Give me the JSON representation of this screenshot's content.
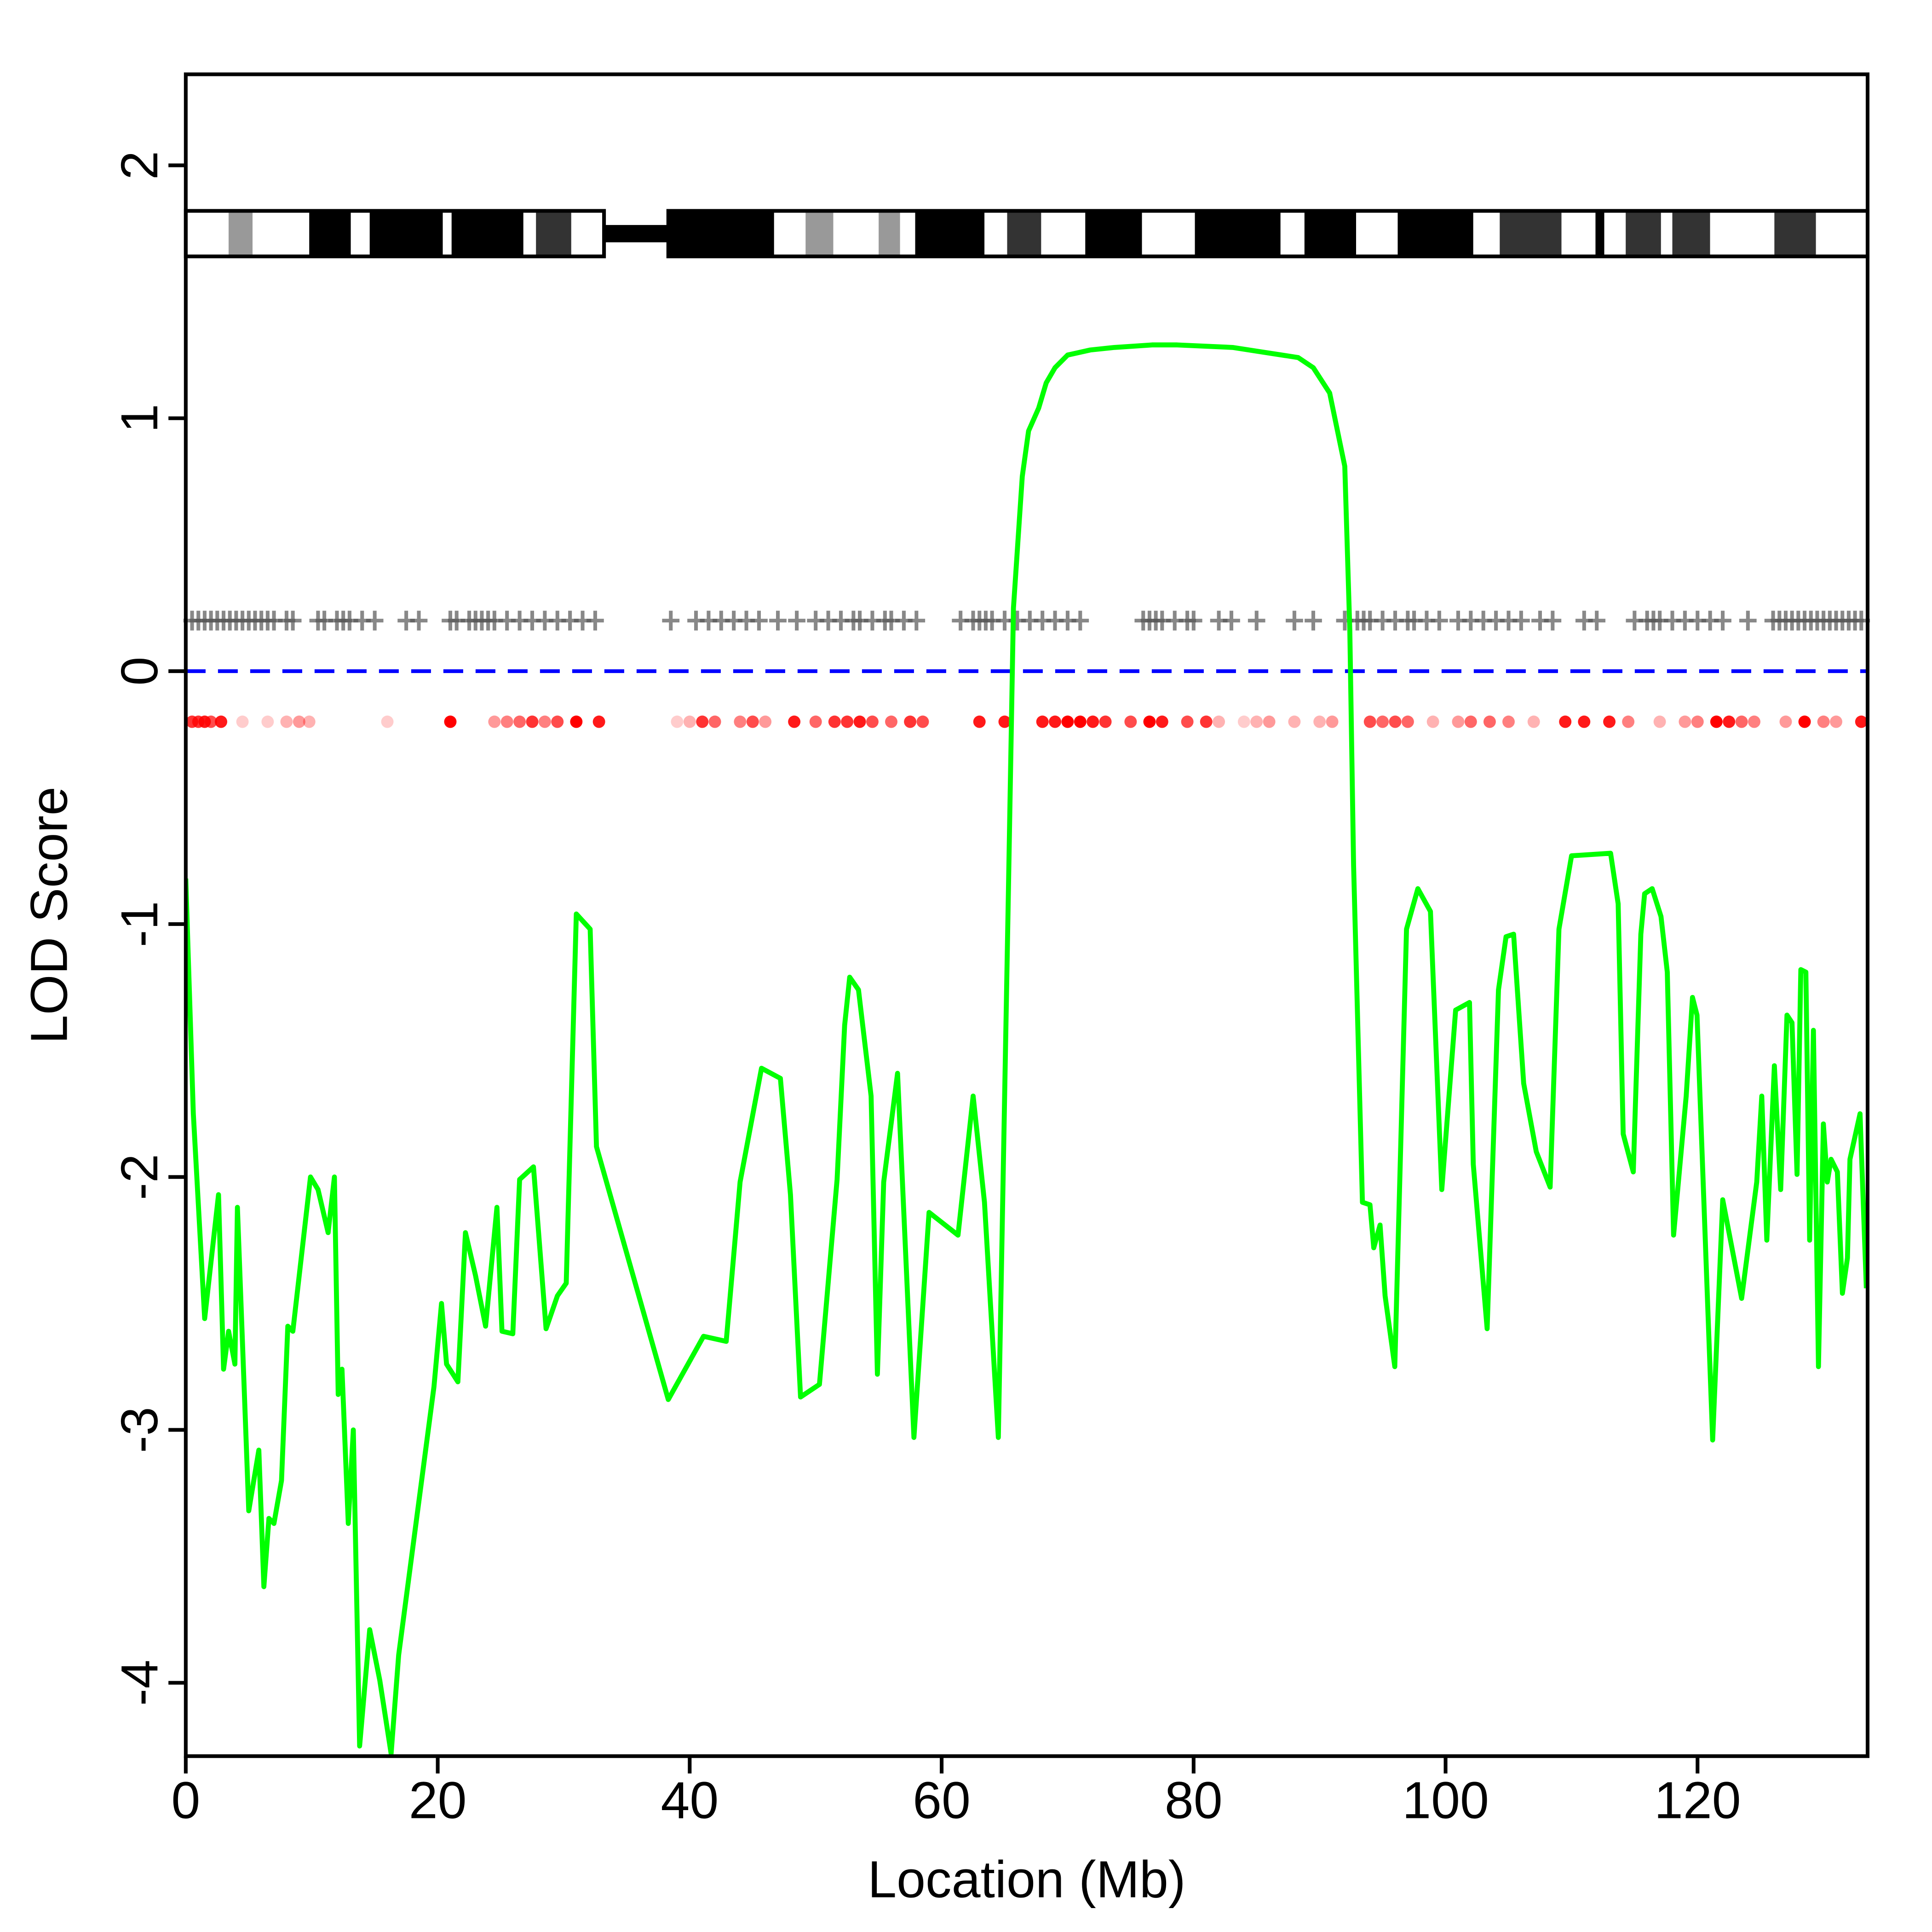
{
  "chart_data": {
    "type": "line",
    "xlabel": "Location (Mb)",
    "ylabel": "LOD Score",
    "xlim": [
      0,
      133.5
    ],
    "ylim": [
      -4.29,
      2.36
    ],
    "xticks": [
      0,
      20,
      40,
      60,
      80,
      100,
      120
    ],
    "yticks": [
      -4,
      -3,
      -2,
      -1,
      0,
      1,
      2
    ],
    "hline": {
      "y": 0,
      "color": "#0000ff"
    },
    "series": [
      {
        "color": "#00ff00",
        "x": [
          0,
          0.6,
          1.5,
          2.6,
          3.0,
          3.4,
          3.9,
          4.1,
          5.0,
          5.8,
          6.2,
          6.6,
          7.0,
          7.6,
          8.1,
          8.5,
          9.9,
          10.5,
          11.3,
          11.8,
          12.1,
          12.4,
          12.9,
          13.3,
          13.8,
          14.6,
          15.4,
          16.3,
          16.9,
          19.7,
          20.3,
          20.7,
          21.6,
          22.2,
          23.0,
          23.8,
          24.7,
          25.1,
          25.96,
          26.5,
          27.6,
          28.6,
          29.5,
          30.2,
          31.0,
          32.1,
          32.6,
          38.3,
          41.1,
          42.9,
          44.0,
          45.7,
          47.2,
          48.0,
          48.8,
          50.3,
          51.7,
          52.3,
          52.7,
          53.4,
          54.4,
          54.9,
          55.4,
          56.5,
          57.8,
          59.0,
          61.3,
          62.5,
          63.4,
          64.5,
          65.3,
          65.7,
          66.4,
          66.9,
          67.7,
          68.3,
          69.0,
          70.0,
          71.8,
          73.7,
          76.7,
          78.7,
          83.1,
          88.3,
          89.5,
          90.8,
          92.0,
          92.4,
          92.7,
          93.4,
          94.0,
          94.3,
          94.8,
          95.2,
          95.97,
          96.9,
          97.8,
          98.8,
          99.7,
          100.8,
          101.9,
          102.2,
          103.3,
          104.2,
          104.8,
          105.4,
          106.2,
          107.2,
          108.3,
          109.0,
          110.0,
          113.1,
          113.7,
          114.1,
          114.9,
          115.5,
          115.8,
          116.4,
          117.1,
          117.6,
          118.1,
          119.1,
          119.6,
          119.96,
          121.2,
          122.0,
          123.5,
          124.7,
          125.1,
          125.5,
          126.1,
          126.6,
          127.1,
          127.5,
          127.9,
          128.2,
          128.6,
          128.9,
          129.2,
          129.6,
          129.99,
          130.3,
          130.6,
          131.1,
          131.5,
          131.9,
          132.1,
          132.9,
          133.4
        ],
        "values": [
          -0.82,
          -1.75,
          -2.56,
          -2.07,
          -2.76,
          -2.61,
          -2.74,
          -2.12,
          -3.32,
          -3.08,
          -3.62,
          -3.35,
          -3.37,
          -3.2,
          -2.59,
          -2.61,
          -2.0,
          -2.05,
          -2.22,
          -2.0,
          -2.86,
          -2.76,
          -3.37,
          -3.0,
          -4.25,
          -3.79,
          -3.99,
          -4.28,
          -3.89,
          -2.83,
          -2.5,
          -2.74,
          -2.81,
          -2.22,
          -2.39,
          -2.59,
          -2.12,
          -2.61,
          -2.62,
          -2.01,
          -1.96,
          -2.6,
          -2.47,
          -2.42,
          -0.96,
          -1.02,
          -1.88,
          -2.88,
          -2.63,
          -2.65,
          -2.02,
          -1.57,
          -1.61,
          -2.07,
          -2.87,
          -2.82,
          -2.01,
          -1.4,
          -1.21,
          -1.26,
          -1.68,
          -2.78,
          -2.02,
          -1.59,
          -3.03,
          -2.14,
          -2.23,
          -1.68,
          -2.1,
          -3.03,
          -0.87,
          0.25,
          0.77,
          0.95,
          1.04,
          1.14,
          1.2,
          1.25,
          1.27,
          1.28,
          1.29,
          1.29,
          1.28,
          1.24,
          1.2,
          1.1,
          0.81,
          0.16,
          -0.77,
          -2.1,
          -2.11,
          -2.28,
          -2.19,
          -2.47,
          -2.75,
          -1.02,
          -0.86,
          -0.95,
          -2.05,
          -1.34,
          -1.31,
          -1.95,
          -2.6,
          -1.26,
          -1.05,
          -1.04,
          -1.63,
          -1.9,
          -2.04,
          -1.02,
          -0.73,
          -0.72,
          -0.92,
          -1.83,
          -1.98,
          -1.04,
          -0.88,
          -0.86,
          -0.97,
          -1.19,
          -2.23,
          -1.68,
          -1.29,
          -1.36,
          -3.04,
          -2.09,
          -2.48,
          -2.02,
          -1.68,
          -2.25,
          -1.56,
          -2.05,
          -1.36,
          -1.39,
          -1.99,
          -1.18,
          -1.19,
          -2.25,
          -1.42,
          -2.75,
          -1.79,
          -2.02,
          -1.93,
          -1.98,
          -2.46,
          -2.32,
          -1.93,
          -1.75,
          -2.44
        ]
      }
    ],
    "ideogram": {
      "y": [
        1.64,
        1.82
      ],
      "centromere": [
        33.2,
        38.3
      ],
      "bands": [
        [
          0,
          3.2,
          "#ffffff"
        ],
        [
          3.4,
          5.3,
          "#999999"
        ],
        [
          5.3,
          9.8,
          "#ffffff"
        ],
        [
          9.8,
          13.1,
          "#000000"
        ],
        [
          13.1,
          14.6,
          "#ffffff"
        ],
        [
          14.6,
          20.4,
          "#000000"
        ],
        [
          20.4,
          21.1,
          "#ffffff"
        ],
        [
          21.1,
          26.8,
          "#000000"
        ],
        [
          26.8,
          27.8,
          "#ffffff"
        ],
        [
          27.8,
          30.6,
          "#333333"
        ],
        [
          30.6,
          33.2,
          "#ffffff"
        ],
        [
          38.3,
          46.7,
          "#000000"
        ],
        [
          46.7,
          49.2,
          "#ffffff"
        ],
        [
          49.2,
          51.4,
          "#999999"
        ],
        [
          51.4,
          55.0,
          "#ffffff"
        ],
        [
          55.0,
          56.7,
          "#999999"
        ],
        [
          56.7,
          57.9,
          "#ffffff"
        ],
        [
          57.9,
          63.4,
          "#000000"
        ],
        [
          63.4,
          65.2,
          "#ffffff"
        ],
        [
          65.2,
          67.9,
          "#333333"
        ],
        [
          67.9,
          71.4,
          "#ffffff"
        ],
        [
          71.4,
          75.9,
          "#000000"
        ],
        [
          75.9,
          80.1,
          "#ffffff"
        ],
        [
          80.1,
          86.9,
          "#000000"
        ],
        [
          86.9,
          88.8,
          "#ffffff"
        ],
        [
          88.8,
          92.9,
          "#000000"
        ],
        [
          92.9,
          96.2,
          "#ffffff"
        ],
        [
          96.2,
          102.2,
          "#000000"
        ],
        [
          102.2,
          104.3,
          "#ffffff"
        ],
        [
          104.3,
          109.2,
          "#333333"
        ],
        [
          109.2,
          111.9,
          "#ffffff"
        ],
        [
          111.9,
          112.6,
          "#000000"
        ],
        [
          112.6,
          114.3,
          "#ffffff"
        ],
        [
          114.3,
          117.1,
          "#333333"
        ],
        [
          117.1,
          118.0,
          "#ffffff"
        ],
        [
          118.0,
          121.0,
          "#333333"
        ],
        [
          121.0,
          126.1,
          "#ffffff"
        ],
        [
          126.1,
          129.4,
          "#333333"
        ],
        [
          129.4,
          133.5,
          "#ffffff"
        ]
      ]
    },
    "markers": {
      "y": 0.2,
      "color": "#555555",
      "x": [
        0.5,
        1,
        1.5,
        2,
        2.5,
        3,
        3.5,
        4,
        4.5,
        5,
        5.5,
        6,
        6.5,
        7,
        8,
        8.5,
        10.5,
        11,
        12,
        12.5,
        13,
        14,
        15,
        17.5,
        18.5,
        21,
        21.5,
        22.5,
        23,
        23.5,
        24,
        24.5,
        25.5,
        26.5,
        27.5,
        28.5,
        29.5,
        30.5,
        31.5,
        32.5,
        38.5,
        40.5,
        41.5,
        42.5,
        43.5,
        44.5,
        45.5,
        47,
        48.5,
        50,
        51,
        52,
        53,
        53.5,
        54.5,
        55.5,
        56,
        57,
        58,
        61.5,
        62.5,
        63,
        63.5,
        64,
        65,
        66,
        67,
        68,
        69,
        70,
        71,
        76,
        76.5,
        77,
        77.5,
        78.5,
        79.5,
        80,
        82,
        83,
        85,
        88,
        89.5,
        92,
        93,
        93.5,
        94,
        95,
        96,
        97,
        97.5,
        98.5,
        99.5,
        101,
        102,
        103,
        104,
        105,
        106,
        107.5,
        108.5,
        111,
        112,
        115,
        116,
        116.5,
        117,
        118,
        119,
        120,
        121,
        122,
        124,
        126,
        126.5,
        127,
        127.5,
        128,
        128.5,
        129,
        129.5,
        130,
        130.5,
        131,
        131.5,
        132,
        132.5,
        133
      ]
    },
    "dots": {
      "y": -0.2,
      "color": "#ff0000",
      "x": [
        0.5,
        1,
        1.5,
        2,
        2.8,
        4.5,
        6.5,
        8,
        9,
        9.8,
        16,
        21,
        24.5,
        25.5,
        26.5,
        27.5,
        28.5,
        29.5,
        31,
        32.8,
        39,
        40,
        41,
        42,
        44,
        45,
        46,
        48.3,
        50,
        51.5,
        52.5,
        53.5,
        54.5,
        56,
        57.5,
        58.5,
        63,
        65,
        68,
        69,
        70,
        71,
        72,
        73,
        75,
        76.5,
        77.5,
        79.5,
        81,
        82,
        84,
        85,
        86,
        88,
        90,
        91,
        94,
        95,
        96,
        97,
        99,
        101,
        102,
        103.5,
        105,
        107,
        109.5,
        111,
        113,
        114.5,
        117,
        119,
        120,
        121.5,
        122.5,
        123.5,
        124.5,
        127,
        128.5,
        130,
        131,
        133
      ],
      "alpha": [
        0.8,
        0.8,
        0.9,
        0.7,
        0.9,
        0.2,
        0.2,
        0.3,
        0.4,
        0.3,
        0.2,
        1,
        0.4,
        0.5,
        0.6,
        0.8,
        0.5,
        0.7,
        1,
        0.9,
        0.2,
        0.3,
        0.8,
        0.6,
        0.5,
        0.7,
        0.4,
        0.9,
        0.6,
        0.8,
        0.8,
        0.9,
        0.7,
        0.6,
        0.8,
        0.7,
        0.9,
        0.9,
        0.9,
        0.9,
        1,
        1,
        0.9,
        0.8,
        0.7,
        1,
        0.9,
        0.7,
        0.8,
        0.3,
        0.2,
        0.3,
        0.4,
        0.3,
        0.3,
        0.4,
        0.7,
        0.6,
        0.7,
        0.6,
        0.3,
        0.4,
        0.6,
        0.6,
        0.5,
        0.3,
        0.9,
        0.9,
        0.9,
        0.5,
        0.3,
        0.4,
        0.5,
        1,
        0.9,
        0.6,
        0.5,
        0.4,
        1,
        0.5,
        0.4,
        0.9
      ]
    }
  }
}
